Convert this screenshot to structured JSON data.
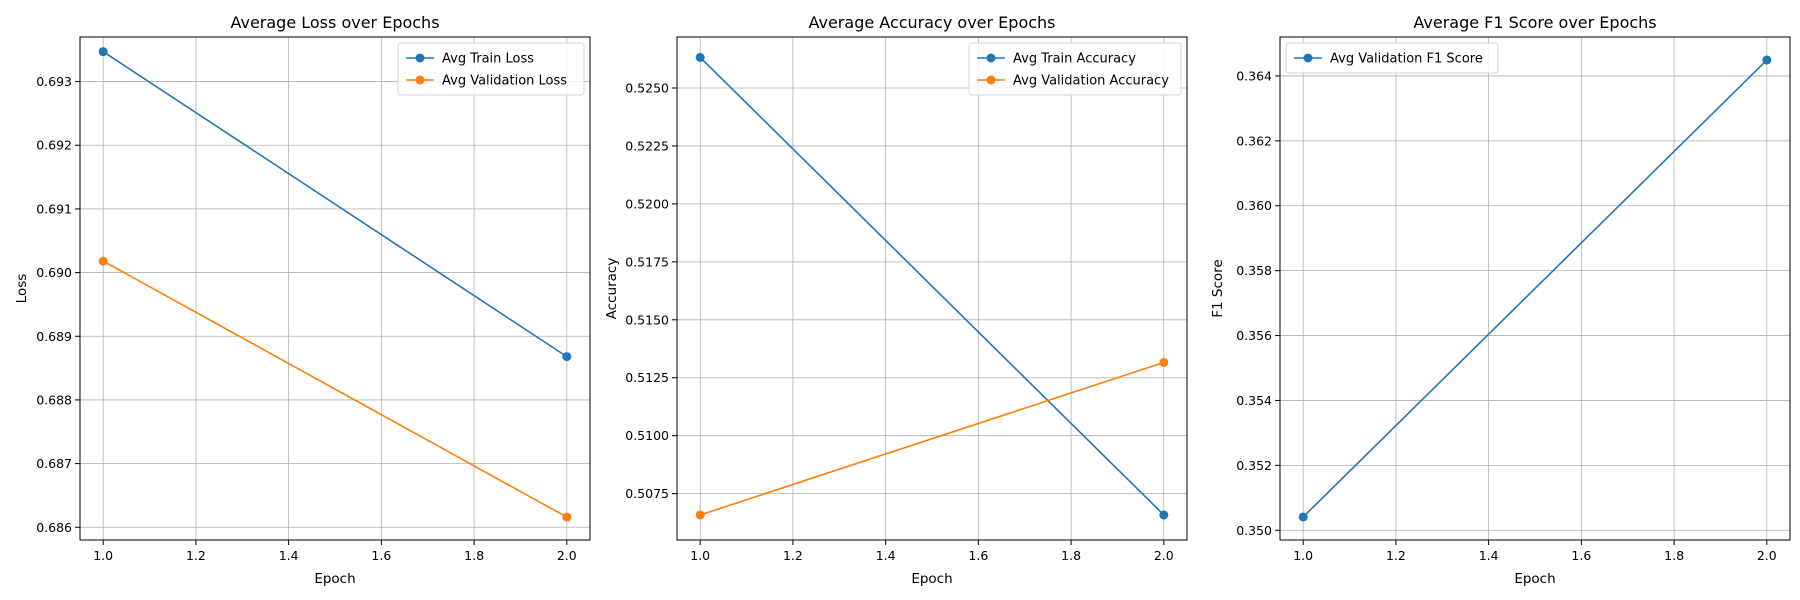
{
  "chart_data": [
    {
      "type": "line",
      "title": "Average Loss over Epochs",
      "xlabel": "Epoch",
      "ylabel": "Loss",
      "x": [
        1.0,
        2.0
      ],
      "xlim": [
        0.95,
        2.05
      ],
      "ylim": [
        0.6858,
        0.6937
      ],
      "xticks": [
        "1.0",
        "1.2",
        "1.4",
        "1.6",
        "1.8",
        "2.0"
      ],
      "yticks": [
        "0.686",
        "0.687",
        "0.688",
        "0.689",
        "0.690",
        "0.691",
        "0.692",
        "0.693"
      ],
      "grid": true,
      "legend_position": "top-right",
      "series": [
        {
          "name": "Avg Train Loss",
          "values": [
            0.69347,
            0.68868
          ],
          "color": "#1f77b4"
        },
        {
          "name": "Avg Validation Loss",
          "values": [
            0.69018,
            0.68616
          ],
          "color": "#ff7f0e"
        }
      ]
    },
    {
      "type": "line",
      "title": "Average Accuracy over Epochs",
      "xlabel": "Epoch",
      "ylabel": "Accuracy",
      "x": [
        1.0,
        2.0
      ],
      "xlim": [
        0.95,
        2.05
      ],
      "ylim": [
        0.5055,
        0.5272
      ],
      "xticks": [
        "1.0",
        "1.2",
        "1.4",
        "1.6",
        "1.8",
        "2.0"
      ],
      "yticks": [
        "0.5075",
        "0.5100",
        "0.5125",
        "0.5150",
        "0.5175",
        "0.5200",
        "0.5225",
        "0.5250"
      ],
      "grid": true,
      "legend_position": "top-right",
      "series": [
        {
          "name": "Avg Train Accuracy",
          "values": [
            0.52632,
            0.50658
          ],
          "color": "#1f77b4"
        },
        {
          "name": "Avg Validation Accuracy",
          "values": [
            0.50658,
            0.51316
          ],
          "color": "#ff7f0e"
        }
      ]
    },
    {
      "type": "line",
      "title": "Average F1 Score over Epochs",
      "xlabel": "Epoch",
      "ylabel": "F1 Score",
      "x": [
        1.0,
        2.0
      ],
      "xlim": [
        0.95,
        2.05
      ],
      "ylim": [
        0.3497,
        0.3652
      ],
      "xticks": [
        "1.0",
        "1.2",
        "1.4",
        "1.6",
        "1.8",
        "2.0"
      ],
      "yticks": [
        "0.350",
        "0.352",
        "0.354",
        "0.356",
        "0.358",
        "0.360",
        "0.362",
        "0.364"
      ],
      "grid": true,
      "legend_position": "top-left",
      "series": [
        {
          "name": "Avg Validation F1 Score",
          "values": [
            0.35041,
            0.36449
          ],
          "color": "#1f77b4"
        }
      ]
    }
  ]
}
